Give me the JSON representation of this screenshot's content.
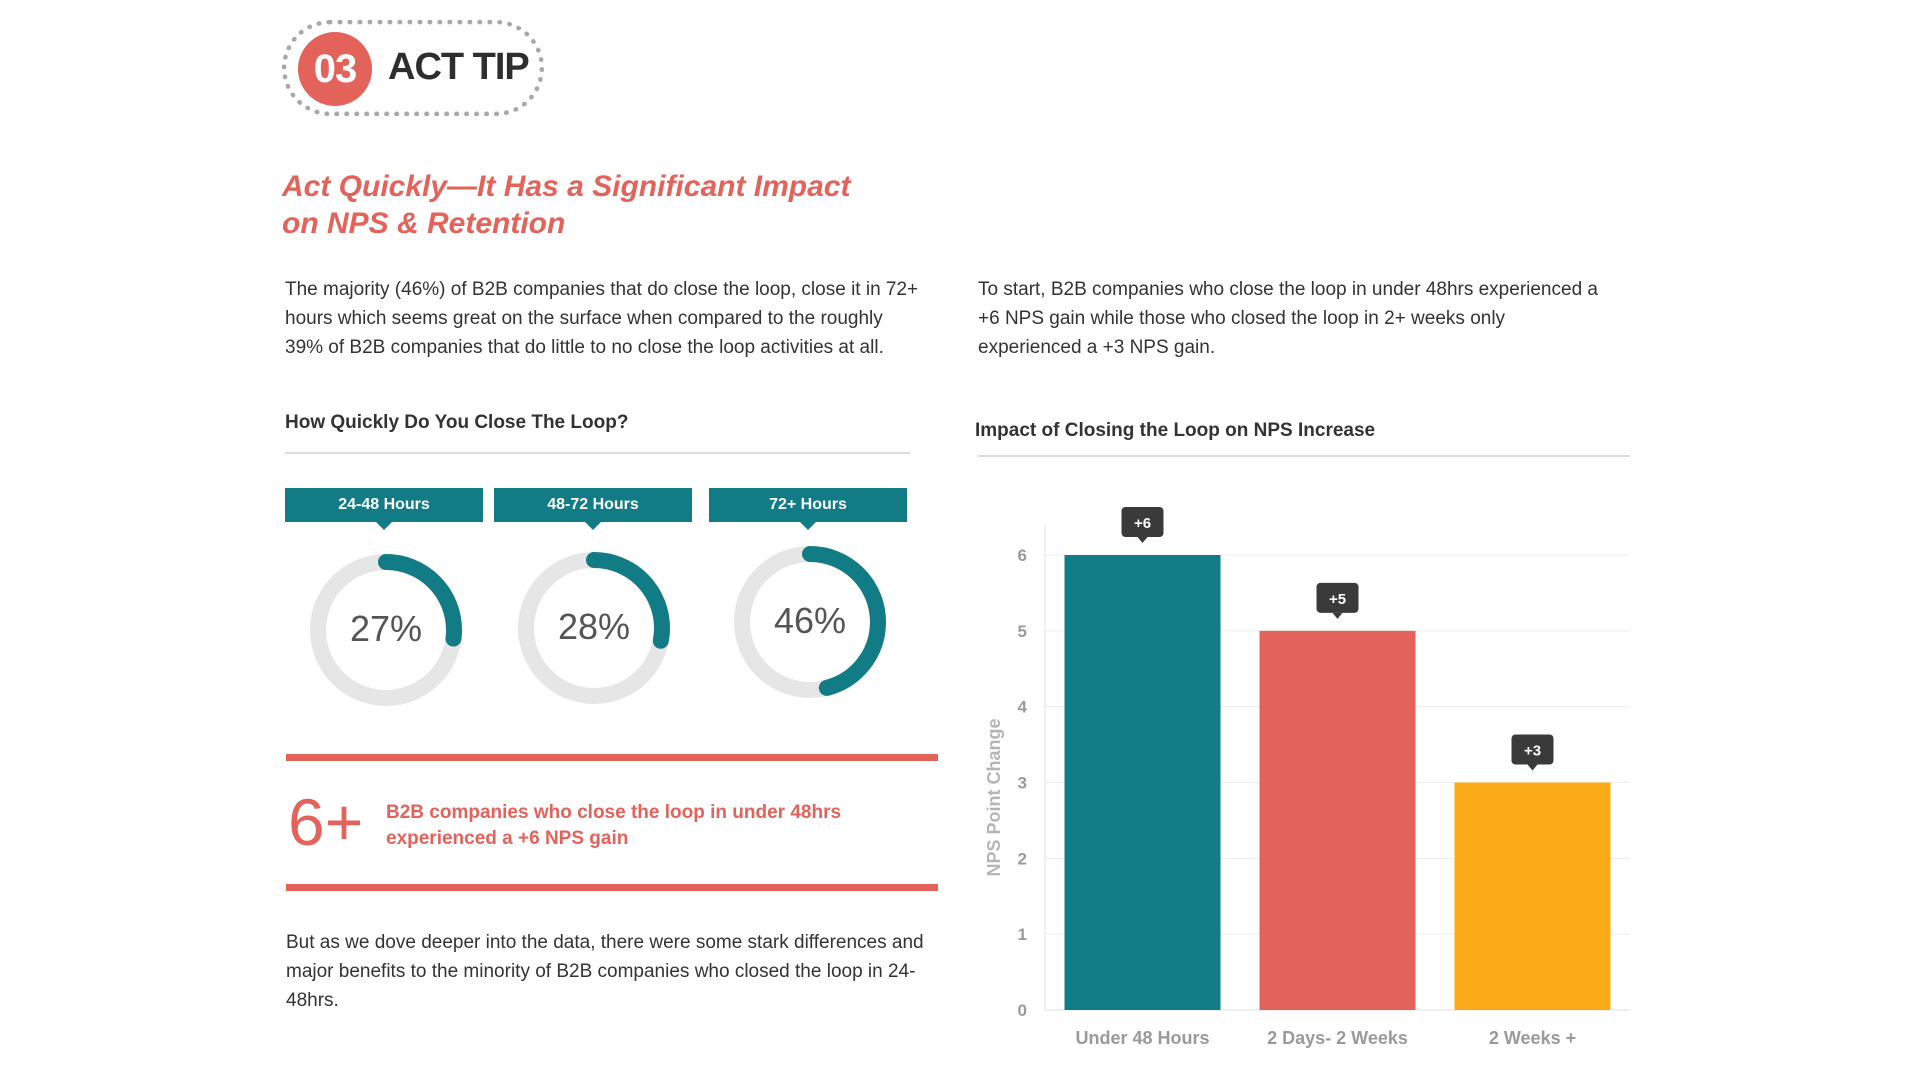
{
  "badge": {
    "number": "03",
    "label": "ACT TIP"
  },
  "headline": {
    "line1": "Act Quickly—It Has a Significant Impact",
    "line2": "on NPS & Retention"
  },
  "left": {
    "intro": "The majority (46%) of B2B companies that do close the loop, close it in 72+ hours which seems great on the surface when compared to the roughly 39% of B2B companies that do little to no close the loop activities at all.",
    "donut_section_title": "How Quickly Do You Close The Loop?",
    "donuts": [
      {
        "tab": "24-48 Hours",
        "label": "27%",
        "value": 27
      },
      {
        "tab": "48-72 Hours",
        "label": "28%",
        "value": 28
      },
      {
        "tab": "72+ Hours",
        "label": "46%",
        "value": 46
      }
    ],
    "stat": {
      "value": "6+",
      "text": "B2B companies who close the loop in under 48hrs experienced a +6 NPS gain"
    },
    "outro": "But as we dove deeper into the data, there were some stark differences and major benefits to the minority of B2B companies who closed the loop in 24-48hrs."
  },
  "right": {
    "intro": "To start, B2B companies who close the loop in under 48hrs experienced a +6 NPS gain while those who closed the loop in 2+ weeks only experienced a +3 NPS gain."
  },
  "colors": {
    "teal": "#127c86",
    "red": "#e3625a",
    "amber": "#fbab18",
    "track": "#e6e6e6",
    "tooltip": "#3a3a3a"
  },
  "chart_data": [
    {
      "type": "pie",
      "title": "How Quickly Do You Close The Loop?",
      "categories": [
        "24-48 Hours",
        "48-72 Hours",
        "72+ Hours"
      ],
      "values": [
        27,
        28,
        46
      ],
      "unit": "%"
    },
    {
      "type": "bar",
      "title": "Impact of Closing the Loop on NPS Increase",
      "categories": [
        "Under 48 Hours",
        "2 Days- 2 Weeks",
        "2 Weeks +"
      ],
      "values": [
        6,
        5,
        3
      ],
      "data_labels": [
        "+6",
        "+5",
        "+3"
      ],
      "bar_colors": [
        "#127c86",
        "#e3625a",
        "#fbab18"
      ],
      "xlabel": "",
      "ylabel": "NPS Point Change",
      "ylim": [
        0,
        6
      ],
      "yticks": [
        0,
        1,
        2,
        3,
        4,
        5,
        6
      ],
      "grid": true,
      "legend": "none"
    }
  ]
}
